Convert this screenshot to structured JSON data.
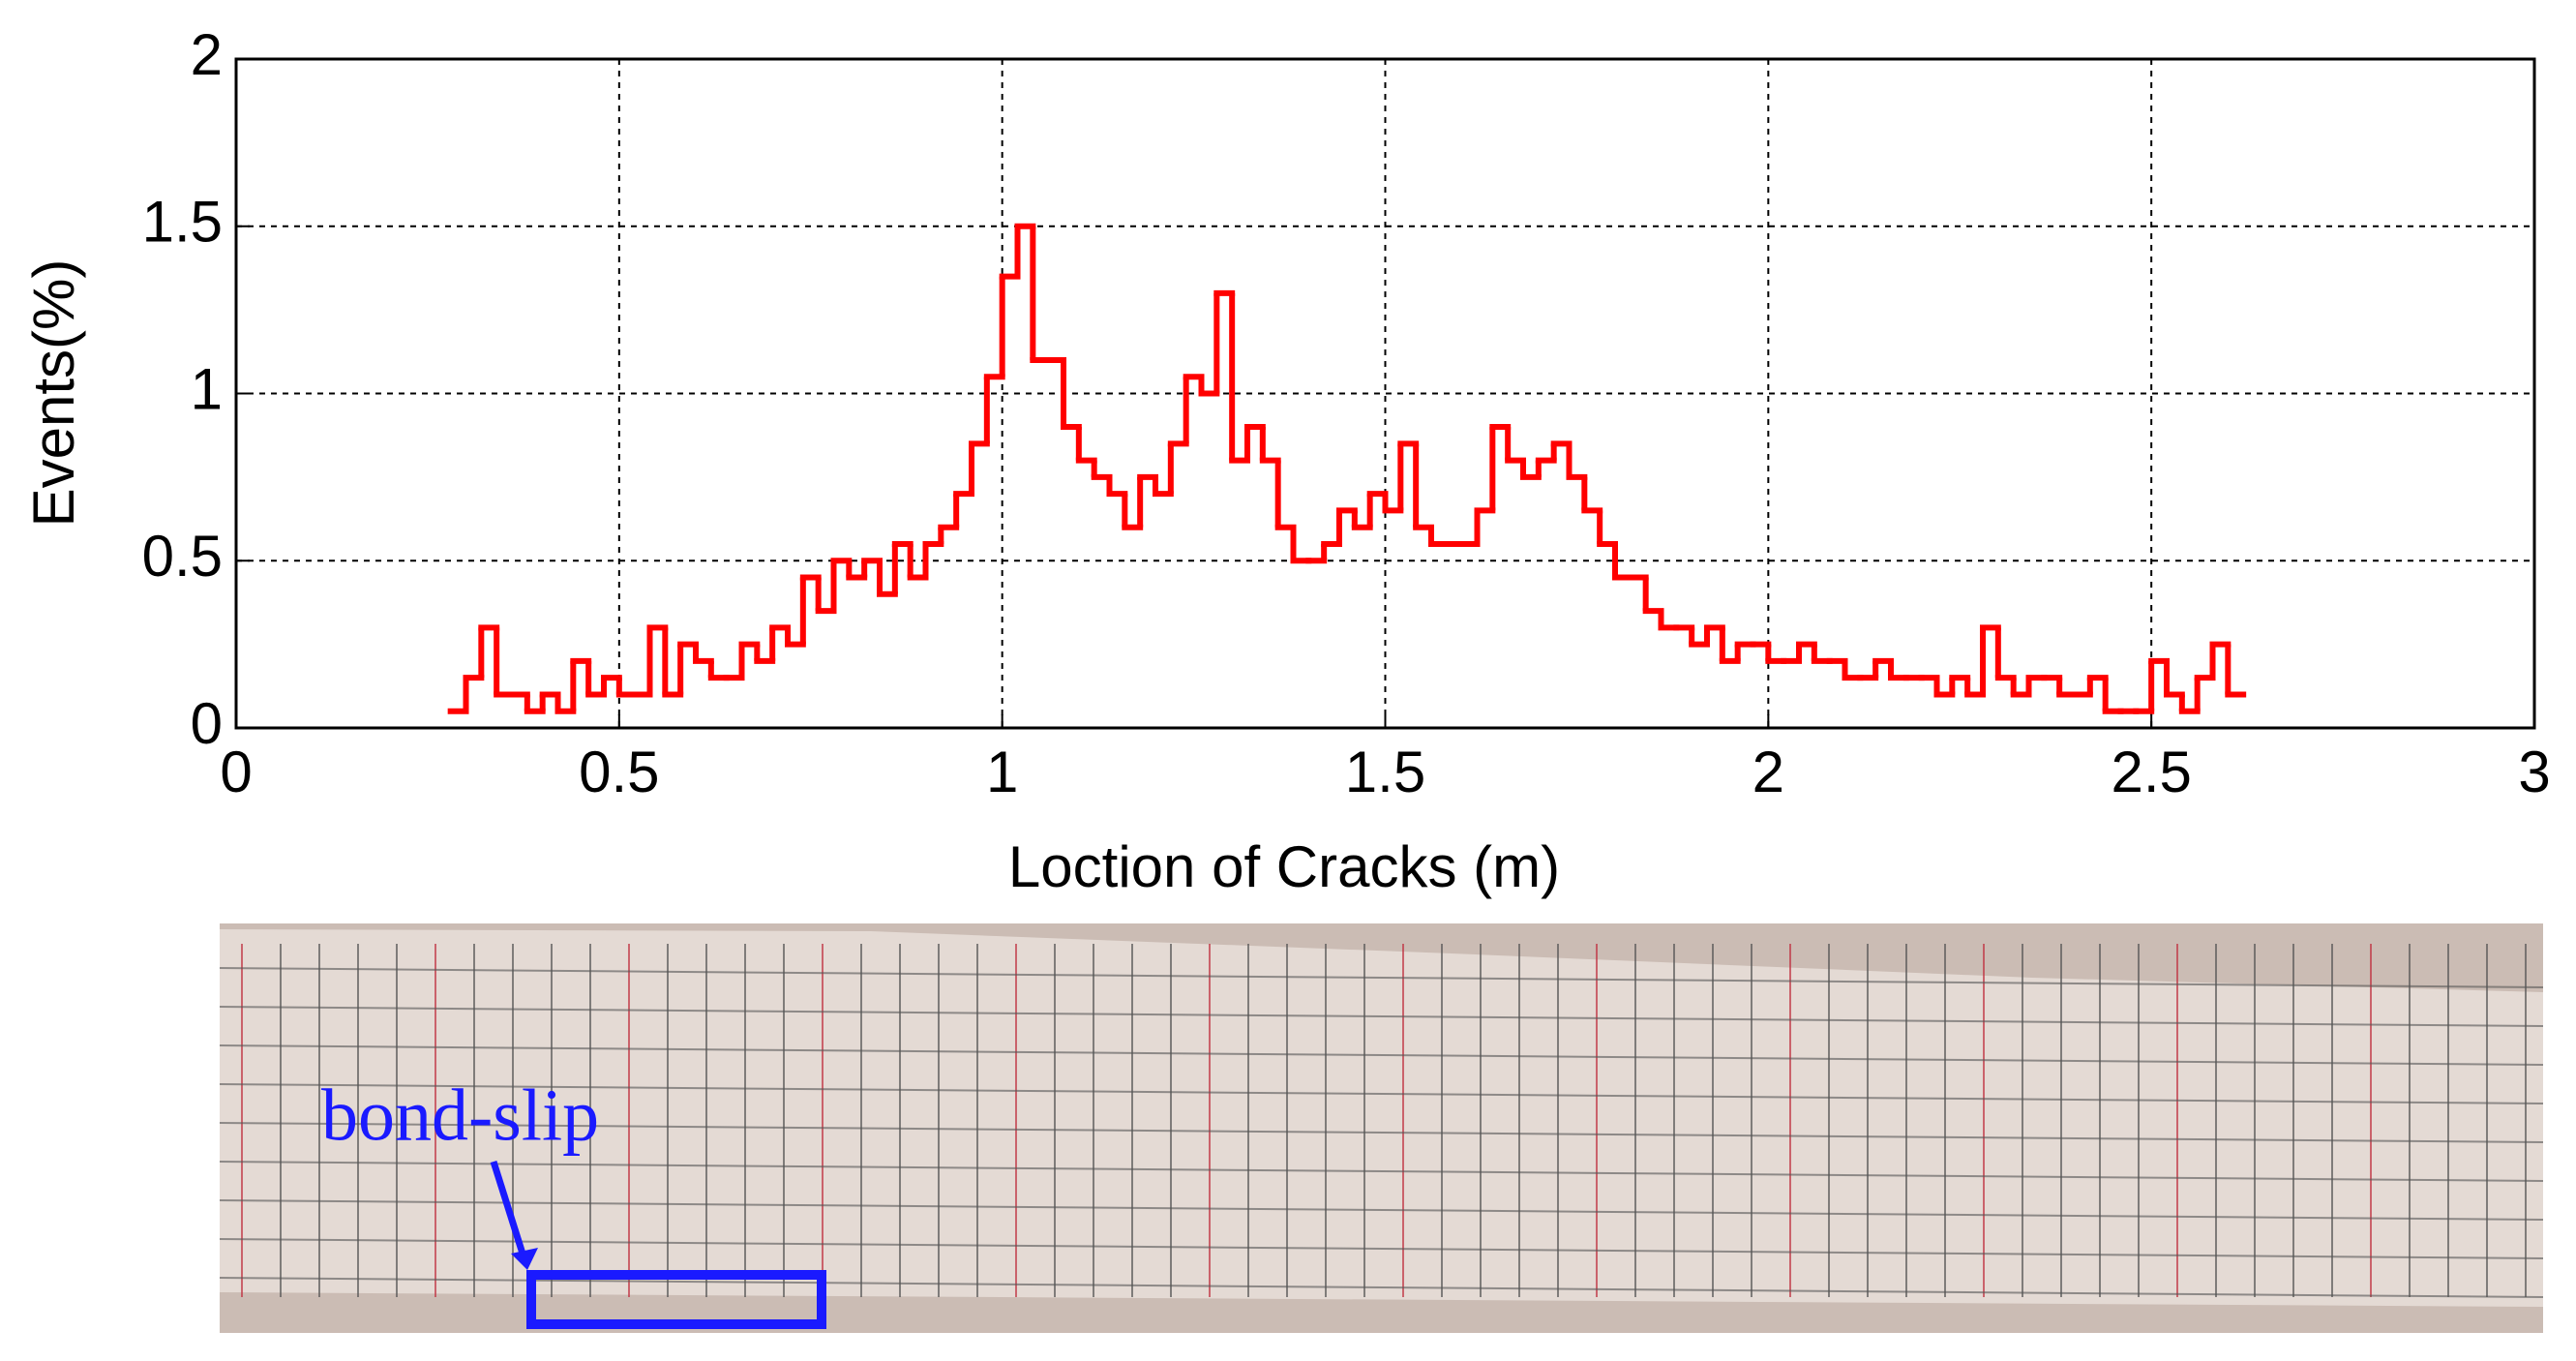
{
  "chart_data": {
    "type": "step",
    "x_label": "Loction of Cracks  (m)",
    "y_label": "Events(%)",
    "annotation": "bond-slip",
    "color": "#ff0000",
    "grid": true,
    "xlim": [
      0,
      3
    ],
    "ylim": [
      0,
      2
    ],
    "xticks": [
      0,
      0.5,
      1,
      1.5,
      2,
      2.5,
      3
    ],
    "yticks": [
      0,
      0.5,
      1,
      1.5,
      2
    ],
    "x": [
      0.28,
      0.3,
      0.32,
      0.34,
      0.36,
      0.38,
      0.4,
      0.42,
      0.44,
      0.46,
      0.48,
      0.5,
      0.52,
      0.54,
      0.56,
      0.58,
      0.6,
      0.62,
      0.64,
      0.66,
      0.68,
      0.7,
      0.72,
      0.74,
      0.76,
      0.78,
      0.8,
      0.82,
      0.84,
      0.86,
      0.88,
      0.9,
      0.92,
      0.94,
      0.96,
      0.98,
      1.0,
      1.02,
      1.04,
      1.06,
      1.08,
      1.1,
      1.12,
      1.14,
      1.16,
      1.18,
      1.2,
      1.22,
      1.24,
      1.26,
      1.28,
      1.3,
      1.32,
      1.34,
      1.36,
      1.38,
      1.4,
      1.42,
      1.44,
      1.46,
      1.48,
      1.5,
      1.52,
      1.54,
      1.56,
      1.58,
      1.6,
      1.62,
      1.64,
      1.66,
      1.68,
      1.7,
      1.72,
      1.74,
      1.76,
      1.78,
      1.8,
      1.82,
      1.84,
      1.86,
      1.88,
      1.9,
      1.92,
      1.94,
      1.96,
      1.98,
      2.0,
      2.02,
      2.04,
      2.06,
      2.08,
      2.1,
      2.12,
      2.14,
      2.16,
      2.18,
      2.2,
      2.22,
      2.24,
      2.26,
      2.28,
      2.3,
      2.32,
      2.34,
      2.36,
      2.38,
      2.4,
      2.42,
      2.44,
      2.46,
      2.48,
      2.5,
      2.52,
      2.54,
      2.56,
      2.58,
      2.6
    ],
    "values": [
      0.05,
      0.15,
      0.3,
      0.1,
      0.1,
      0.05,
      0.1,
      0.05,
      0.2,
      0.1,
      0.15,
      0.1,
      0.1,
      0.3,
      0.1,
      0.25,
      0.2,
      0.15,
      0.15,
      0.25,
      0.2,
      0.3,
      0.25,
      0.45,
      0.35,
      0.5,
      0.45,
      0.5,
      0.4,
      0.55,
      0.45,
      0.55,
      0.6,
      0.7,
      0.85,
      1.05,
      1.35,
      1.5,
      1.1,
      1.1,
      0.9,
      0.8,
      0.75,
      0.7,
      0.6,
      0.75,
      0.7,
      0.85,
      1.05,
      1.0,
      1.3,
      0.8,
      0.9,
      0.8,
      0.6,
      0.5,
      0.5,
      0.55,
      0.65,
      0.6,
      0.7,
      0.65,
      0.85,
      0.6,
      0.55,
      0.55,
      0.55,
      0.65,
      0.9,
      0.8,
      0.75,
      0.8,
      0.85,
      0.75,
      0.65,
      0.55,
      0.45,
      0.45,
      0.35,
      0.3,
      0.3,
      0.25,
      0.3,
      0.2,
      0.25,
      0.25,
      0.2,
      0.2,
      0.25,
      0.2,
      0.2,
      0.15,
      0.15,
      0.2,
      0.15,
      0.15,
      0.15,
      0.1,
      0.15,
      0.1,
      0.3,
      0.15,
      0.1,
      0.15,
      0.15,
      0.1,
      0.1,
      0.15,
      0.05,
      0.05,
      0.05,
      0.2,
      0.1,
      0.05,
      0.15,
      0.25,
      0.1
    ]
  }
}
